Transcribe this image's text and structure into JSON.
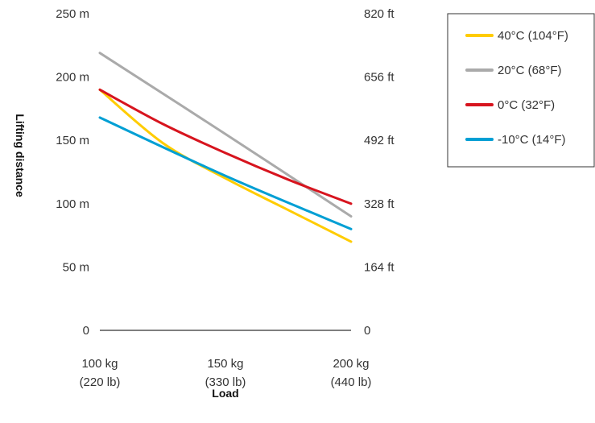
{
  "chart_data": {
    "type": "line",
    "xlabel": "Load",
    "ylabel": "Lifting distance",
    "xlim": [
      100,
      200
    ],
    "ylim": [
      0,
      250
    ],
    "categories": [
      {
        "value": 100,
        "label": "100 kg",
        "sublabel": "(220 lb)"
      },
      {
        "value": 150,
        "label": "150 kg",
        "sublabel": "(330 lb)"
      },
      {
        "value": 200,
        "label": "200 kg",
        "sublabel": "(440 lb)"
      }
    ],
    "y_ticks_left": [
      {
        "value": 0,
        "label": "0"
      },
      {
        "value": 50,
        "label": "50 m"
      },
      {
        "value": 100,
        "label": "100 m"
      },
      {
        "value": 150,
        "label": "150 m"
      },
      {
        "value": 200,
        "label": "200 m"
      },
      {
        "value": 250,
        "label": "250 m"
      }
    ],
    "y_ticks_right": [
      {
        "value": 0,
        "label": "0"
      },
      {
        "value": 50,
        "label": "164 ft"
      },
      {
        "value": 100,
        "label": "328 ft"
      },
      {
        "value": 150,
        "label": "492 ft"
      },
      {
        "value": 200,
        "label": "656 ft"
      },
      {
        "value": 250,
        "label": "820 ft"
      }
    ],
    "grid": false,
    "legend_position": "top-right",
    "series": [
      {
        "name": "40°C (104°F)",
        "color": "#FFCC00",
        "x": [
          100,
          125,
          150,
          175,
          200
        ],
        "y": [
          190,
          148,
          120,
          95,
          70
        ]
      },
      {
        "name": "20°C (68°F)",
        "color": "#AAAAAA",
        "x": [
          100,
          150,
          200
        ],
        "y": [
          219,
          155,
          90
        ]
      },
      {
        "name": "0°C (32°F)",
        "color": "#D7141E",
        "x": [
          100,
          125,
          150,
          175,
          200
        ],
        "y": [
          190,
          163,
          140,
          119,
          100
        ]
      },
      {
        "name": "-10°C (14°F)",
        "color": "#009FD4",
        "x": [
          100,
          150,
          200
        ],
        "y": [
          168,
          122,
          80
        ]
      }
    ]
  }
}
